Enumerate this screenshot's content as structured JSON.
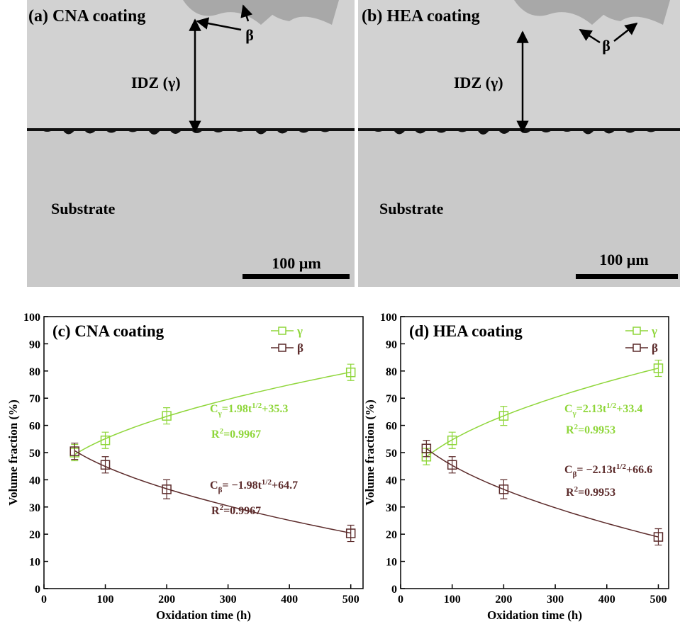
{
  "micrographs": [
    {
      "label": "(a) CNA coating",
      "beta": "β",
      "idz": "IDZ (γ)",
      "substrate": "Substrate",
      "scale": "100 µm"
    },
    {
      "label": "(b) HEA coating",
      "beta": "β",
      "idz": "IDZ (γ)",
      "substrate": "Substrate",
      "scale": "100 µm"
    }
  ],
  "chart_data": [
    {
      "type": "line",
      "title": "(c) CNA coating",
      "x_label": "Oxidation time (h)",
      "y_label": "Volume fraction (%)",
      "x": [
        50,
        100,
        200,
        500
      ],
      "xlim": [
        0,
        520
      ],
      "xticks": [
        0,
        100,
        200,
        300,
        400,
        500
      ],
      "ylim": [
        0,
        100
      ],
      "yticks": [
        0,
        10,
        20,
        30,
        40,
        50,
        60,
        70,
        80,
        90,
        100
      ],
      "series": [
        {
          "name": "γ",
          "color": "#8fd63a",
          "values": [
            50,
            54.5,
            63.5,
            79.5
          ],
          "errors": [
            3,
            3,
            3,
            3
          ],
          "fit": [
            1.98,
            35.3
          ],
          "fit_label": {
            "base": "C",
            "sub": "γ",
            "coef": "=1.98t",
            "sup": "1/2",
            "const": "+35.3"
          },
          "r2_label": {
            "base": "R",
            "sup": "2",
            "value": "=0.9967"
          }
        },
        {
          "name": "β",
          "color": "#5c2b2b",
          "values": [
            50.5,
            45.5,
            36.5,
            20.3
          ],
          "errors": [
            3,
            3,
            3.5,
            3
          ],
          "fit": [
            -1.98,
            64.7
          ],
          "fit_label": {
            "base": "C",
            "sub": "β",
            "coef": "= −1.98t",
            "sup": "1/2",
            "const": "+64.7"
          },
          "r2_label": {
            "base": "R",
            "sup": "2",
            "value": "=0.9967"
          }
        }
      ]
    },
    {
      "type": "line",
      "title": "(d) HEA coating",
      "x_label": "Oxidation time (h)",
      "y_label": "Volume fraction (%)",
      "x": [
        50,
        100,
        200,
        500
      ],
      "xlim": [
        0,
        520
      ],
      "xticks": [
        0,
        100,
        200,
        300,
        400,
        500
      ],
      "ylim": [
        0,
        100
      ],
      "yticks": [
        0,
        10,
        20,
        30,
        40,
        50,
        60,
        70,
        80,
        90,
        100
      ],
      "series": [
        {
          "name": "γ",
          "color": "#8fd63a",
          "values": [
            48.5,
            54.5,
            63.5,
            81
          ],
          "errors": [
            3,
            3,
            3.5,
            3
          ],
          "fit": [
            2.13,
            33.4
          ],
          "fit_label": {
            "base": "C",
            "sub": "γ",
            "coef": "=2.13t",
            "sup": "1/2",
            "const": "+33.4"
          },
          "r2_label": {
            "base": "R",
            "sup": "2",
            "value": "=0.9953"
          }
        },
        {
          "name": "β",
          "color": "#5c2b2b",
          "values": [
            51.5,
            45.5,
            36.5,
            19
          ],
          "errors": [
            3,
            3,
            3.5,
            3
          ],
          "fit": [
            -2.13,
            66.6
          ],
          "fit_label": {
            "base": "C",
            "sub": "β",
            "coef": "= −2.13t",
            "sup": "1/2",
            "const": "+66.6"
          },
          "r2_label": {
            "base": "R",
            "sup": "2",
            "value": "=0.9953"
          }
        }
      ]
    }
  ]
}
